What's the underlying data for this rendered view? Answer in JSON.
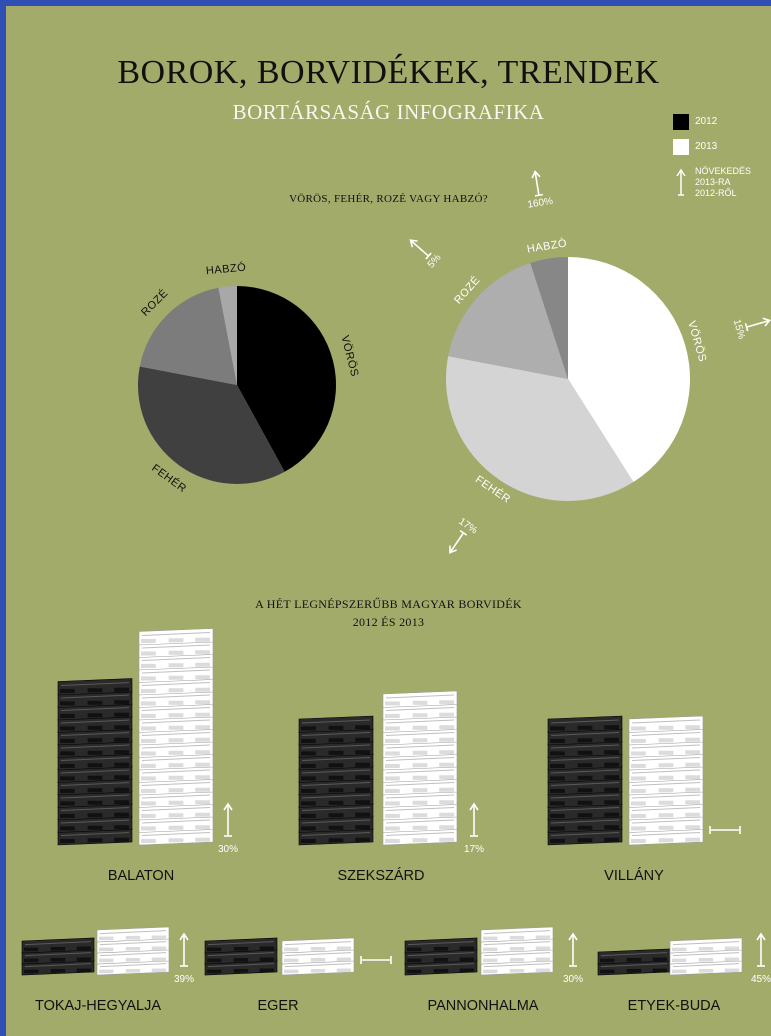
{
  "header": {
    "title": "BOROK, BORVIDÉKEK, TRENDEK",
    "subtitle": "BORTÁRSASÁG INFOGRAFIKA"
  },
  "legend": {
    "year_a": "2012",
    "year_b": "2013",
    "growth_note": "NÖVEKEDÉS\n2013-RA\n2012-RŐL",
    "color_a": "#000000",
    "color_b": "#ffffff"
  },
  "pie_section": {
    "heading": "VÖRÖS, FEHÉR, ROZÉ VAGY HABZÓ?"
  },
  "bar_section": {
    "heading_line1": "A HÉT LEGNÉPSZERŰBB MAGYAR BORVIDÉK",
    "heading_line2": "2012 ÉS 2013"
  },
  "chart_data": [
    {
      "type": "pie",
      "year": "2012",
      "slices": [
        {
          "label": "VÖRÖS",
          "value": 42,
          "color": "#000000"
        },
        {
          "label": "FEHÉR",
          "value": 36,
          "color": "#404040"
        },
        {
          "label": "ROZÉ",
          "value": 19,
          "color": "#7c7c7c"
        },
        {
          "label": "HABZÓ",
          "value": 3,
          "color": "#a8a8a8"
        }
      ]
    },
    {
      "type": "pie",
      "year": "2013",
      "slices": [
        {
          "label": "VÖRÖS",
          "value": 41,
          "color": "#ffffff",
          "growth": "15%",
          "trend": "up"
        },
        {
          "label": "FEHÉR",
          "value": 37,
          "color": "#d4d4d4",
          "growth": "17%",
          "trend": "up"
        },
        {
          "label": "ROZÉ",
          "value": 17,
          "color": "#aeaeae",
          "growth": "5%",
          "trend": "up"
        },
        {
          "label": "HABZÓ",
          "value": 5,
          "color": "#878787",
          "growth": "160%",
          "trend": "up"
        }
      ]
    },
    {
      "type": "bar",
      "series": [
        {
          "name": "2012",
          "color": "#1a1a1a"
        },
        {
          "name": "2013",
          "color": "#ffffff"
        }
      ],
      "categories": [
        "BALATON",
        "SZEKSZÁRD",
        "VILLÁNY",
        "TOKAJ-HEGYALJA",
        "EGER",
        "PANNONHALMA",
        "ETYEK-BUDA"
      ],
      "values_2012": [
        13,
        10,
        10,
        3,
        3,
        3,
        2
      ],
      "values_2013": [
        17,
        12,
        10,
        4,
        3,
        4,
        3
      ],
      "growth": [
        "30%",
        "17%",
        "",
        "39%",
        "",
        "30%",
        "45%"
      ],
      "trend": [
        "up",
        "up",
        "flat",
        "up",
        "flat",
        "up",
        "up"
      ]
    }
  ]
}
